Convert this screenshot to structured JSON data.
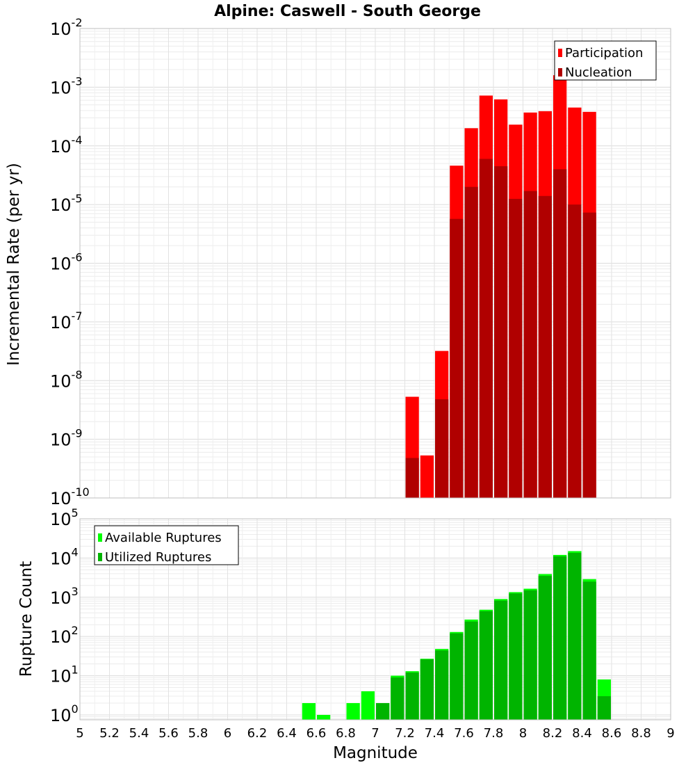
{
  "chart_data": [
    {
      "type": "bar",
      "title": "Alpine: Caswell - South George",
      "ylabel": "Incremental Rate (per yr)",
      "xlabel": "",
      "yscale": "log",
      "ylim": [
        1e-10,
        0.01
      ],
      "xlim": [
        5,
        9
      ],
      "y_tick_labels": [
        {
          "base": "10",
          "exp": "-10"
        },
        {
          "base": "10",
          "exp": "-9"
        },
        {
          "base": "10",
          "exp": "-8"
        },
        {
          "base": "10",
          "exp": "-7"
        },
        {
          "base": "10",
          "exp": "-6"
        },
        {
          "base": "10",
          "exp": "-5"
        },
        {
          "base": "10",
          "exp": "-4"
        },
        {
          "base": "10",
          "exp": "-3"
        },
        {
          "base": "10",
          "exp": "-2"
        }
      ],
      "legend_position": "top-right",
      "grid": true,
      "x": [
        7.25,
        7.35,
        7.45,
        7.55,
        7.65,
        7.75,
        7.85,
        7.95,
        8.05,
        8.15,
        8.25,
        8.35,
        8.45
      ],
      "series": [
        {
          "name": "Participation",
          "color": "#ff0000",
          "values": [
            5.3e-09,
            5.3e-10,
            3.2e-08,
            4.6e-05,
            0.0002,
            0.00072,
            0.00062,
            0.00023,
            0.00037,
            0.00039,
            0.0016,
            0.00045,
            0.00038
          ]
        },
        {
          "name": "Nucleation",
          "color": "#b00000",
          "values": [
            4.8e-10,
            0,
            4.8e-09,
            5.7e-06,
            2e-05,
            6e-05,
            4.5e-05,
            1.25e-05,
            1.7e-05,
            1.4e-05,
            4e-05,
            1e-05,
            7.3e-06
          ]
        }
      ]
    },
    {
      "type": "bar",
      "title": "",
      "ylabel": "Rupture Count",
      "xlabel": "Magnitude",
      "yscale": "log",
      "ylim": [
        0.75,
        100000
      ],
      "xlim": [
        5,
        9
      ],
      "y_tick_labels": [
        {
          "base": "10",
          "exp": "0"
        },
        {
          "base": "10",
          "exp": "1"
        },
        {
          "base": "10",
          "exp": "2"
        },
        {
          "base": "10",
          "exp": "3"
        },
        {
          "base": "10",
          "exp": "4"
        },
        {
          "base": "10",
          "exp": "5"
        }
      ],
      "x_tick_labels": [
        "5",
        "5.2",
        "5.4",
        "5.6",
        "5.8",
        "6",
        "6.2",
        "6.4",
        "6.6",
        "6.8",
        "7",
        "7.2",
        "7.4",
        "7.6",
        "7.8",
        "8",
        "8.2",
        "8.4",
        "8.6",
        "8.8",
        "9"
      ],
      "legend_position": "top-left",
      "grid": true,
      "x": [
        6.55,
        6.65,
        6.85,
        6.95,
        7.05,
        7.15,
        7.25,
        7.35,
        7.45,
        7.55,
        7.65,
        7.75,
        7.85,
        7.95,
        8.05,
        8.15,
        8.25,
        8.35,
        8.45,
        8.55
      ],
      "series": [
        {
          "name": "Available Ruptures",
          "color": "#00ff00",
          "values": [
            2,
            1,
            2,
            4,
            2,
            10,
            13,
            27,
            48,
            130,
            270,
            480,
            900,
            1350,
            1650,
            3900,
            12000,
            15000,
            2900,
            8
          ]
        },
        {
          "name": "Utilized Ruptures",
          "color": "#00b400",
          "values": [
            0,
            0,
            0,
            0,
            2,
            9,
            12,
            26,
            44,
            120,
            240,
            440,
            820,
            1250,
            1500,
            3500,
            11000,
            13500,
            2500,
            3
          ]
        }
      ]
    }
  ]
}
